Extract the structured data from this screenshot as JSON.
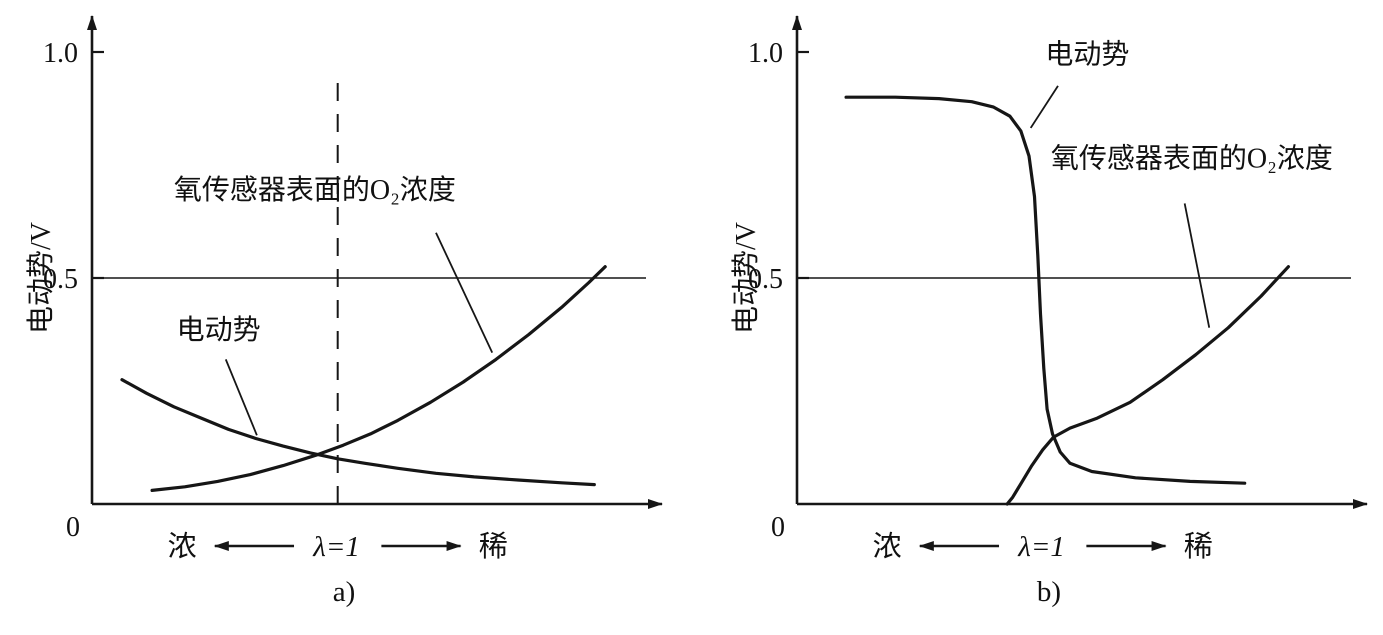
{
  "figure": {
    "stroke_color": "#161616",
    "background": "#ffffff",
    "x_units": "relative_position_0_1",
    "y_units": "V"
  },
  "chart_data": [
    {
      "id": "a",
      "type": "line",
      "caption": "a)",
      "title": "",
      "xlabel": "",
      "ylabel": "电动势/V",
      "ylim": [
        0,
        1.05
      ],
      "grid": false,
      "legend": "none",
      "yticks": [
        {
          "v": 1.0,
          "label": "1.0"
        },
        {
          "v": 0.5,
          "label": "0.5"
        }
      ],
      "origin_label": "0",
      "x_axis": {
        "rich_label": "浓",
        "lambda_label": "λ=1",
        "lean_label": "稀"
      },
      "reference_lines": {
        "horizontal_v": 0.5,
        "vertical_dashed_x": 0.45,
        "vertical_dashed_top_v": 0.95
      },
      "series": [
        {
          "key": "emf",
          "name": "电动势",
          "points": [
            [
              0.055,
              0.275
            ],
            [
              0.1,
              0.245
            ],
            [
              0.15,
              0.215
            ],
            [
              0.2,
              0.19
            ],
            [
              0.25,
              0.165
            ],
            [
              0.3,
              0.145
            ],
            [
              0.35,
              0.128
            ],
            [
              0.4,
              0.113
            ],
            [
              0.45,
              0.1
            ],
            [
              0.5,
              0.09
            ],
            [
              0.56,
              0.079
            ],
            [
              0.63,
              0.068
            ],
            [
              0.7,
              0.06
            ],
            [
              0.78,
              0.053
            ],
            [
              0.86,
              0.047
            ],
            [
              0.92,
              0.043
            ]
          ]
        },
        {
          "key": "o2_surface_concentration",
          "name": "氧传感器表面的O₂浓度",
          "points": [
            [
              0.11,
              0.03
            ],
            [
              0.17,
              0.038
            ],
            [
              0.23,
              0.05
            ],
            [
              0.29,
              0.065
            ],
            [
              0.35,
              0.085
            ],
            [
              0.41,
              0.108
            ],
            [
              0.46,
              0.13
            ],
            [
              0.51,
              0.155
            ],
            [
              0.56,
              0.185
            ],
            [
              0.62,
              0.225
            ],
            [
              0.68,
              0.27
            ],
            [
              0.74,
              0.32
            ],
            [
              0.8,
              0.375
            ],
            [
              0.86,
              0.435
            ],
            [
              0.91,
              0.49
            ],
            [
              0.94,
              0.525
            ]
          ]
        }
      ],
      "annotations": [
        {
          "key": "emf-label",
          "text": "电动势",
          "x": 0.155,
          "v": 0.365,
          "leader": [
            [
              0.245,
              0.32
            ],
            [
              0.302,
              0.152
            ]
          ]
        },
        {
          "key": "o2-label",
          "text": "氧传感器表面的O₂浓度",
          "x": 0.15,
          "v": 0.675,
          "leader": [
            [
              0.63,
              0.6
            ],
            [
              0.733,
              0.335
            ]
          ]
        }
      ]
    },
    {
      "id": "b",
      "type": "line",
      "caption": "b)",
      "title": "",
      "xlabel": "",
      "ylabel": "电动势/V",
      "ylim": [
        0,
        1.05
      ],
      "grid": false,
      "legend": "none",
      "yticks": [
        {
          "v": 1.0,
          "label": "1.0"
        },
        {
          "v": 0.5,
          "label": "0.5"
        }
      ],
      "origin_label": "0",
      "x_axis": {
        "rich_label": "浓",
        "lambda_label": "λ=1",
        "lean_label": "稀"
      },
      "reference_lines": {
        "horizontal_v": 0.5
      },
      "series": [
        {
          "key": "emf",
          "name": "电动势",
          "points": [
            [
              0.09,
              0.9
            ],
            [
              0.18,
              0.9
            ],
            [
              0.26,
              0.897
            ],
            [
              0.32,
              0.89
            ],
            [
              0.36,
              0.878
            ],
            [
              0.39,
              0.858
            ],
            [
              0.41,
              0.825
            ],
            [
              0.425,
              0.77
            ],
            [
              0.435,
              0.68
            ],
            [
              0.441,
              0.55
            ],
            [
              0.446,
              0.42
            ],
            [
              0.452,
              0.3
            ],
            [
              0.458,
              0.21
            ],
            [
              0.468,
              0.155
            ],
            [
              0.482,
              0.115
            ],
            [
              0.5,
              0.09
            ],
            [
              0.54,
              0.072
            ],
            [
              0.62,
              0.058
            ],
            [
              0.72,
              0.05
            ],
            [
              0.82,
              0.046
            ]
          ]
        },
        {
          "key": "o2_surface_concentration",
          "name": "氧传感器表面的O₂浓度",
          "points": [
            [
              0.385,
              0.0
            ],
            [
              0.395,
              0.015
            ],
            [
              0.41,
              0.045
            ],
            [
              0.43,
              0.085
            ],
            [
              0.45,
              0.12
            ],
            [
              0.47,
              0.148
            ],
            [
              0.5,
              0.168
            ],
            [
              0.55,
              0.19
            ],
            [
              0.61,
              0.225
            ],
            [
              0.67,
              0.275
            ],
            [
              0.73,
              0.33
            ],
            [
              0.79,
              0.39
            ],
            [
              0.85,
              0.46
            ],
            [
              0.9,
              0.525
            ]
          ]
        }
      ],
      "annotations": [
        {
          "key": "emf-label",
          "text": "电动势",
          "x": 0.455,
          "v": 0.975,
          "leader": [
            [
              0.478,
              0.925
            ],
            [
              0.428,
              0.832
            ]
          ]
        },
        {
          "key": "o2-label",
          "text": "氧传感器表面的O₂浓度",
          "x": 0.465,
          "v": 0.745,
          "leader": [
            [
              0.71,
              0.665
            ],
            [
              0.755,
              0.39
            ]
          ]
        }
      ]
    }
  ]
}
